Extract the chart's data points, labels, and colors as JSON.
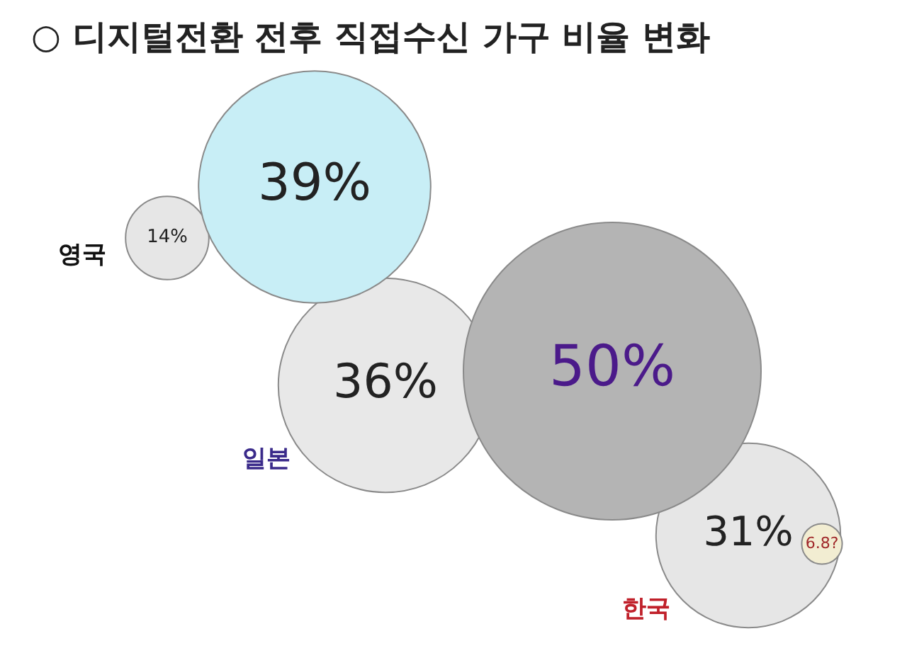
{
  "chart_data": {
    "type": "other",
    "title": "○ 디지털전환 전후 직접수신 가구 비율 변화",
    "categories": [
      "영국",
      "일본",
      "한국"
    ],
    "series": [
      {
        "colors": [
          "#e6e6e6",
          "#e8e8e8",
          "#e6e6e6"
        ],
        "values": [
          14,
          36,
          31
        ],
        "value_labels": [
          "14%",
          "36%",
          "31%"
        ]
      },
      {
        "colors": [
          "#c8eef6",
          "#b4b4b4",
          "#f2edd2"
        ],
        "values": [
          39,
          50,
          6.8
        ],
        "value_labels": [
          "39%",
          "50%",
          "6.8?"
        ]
      }
    ]
  }
}
